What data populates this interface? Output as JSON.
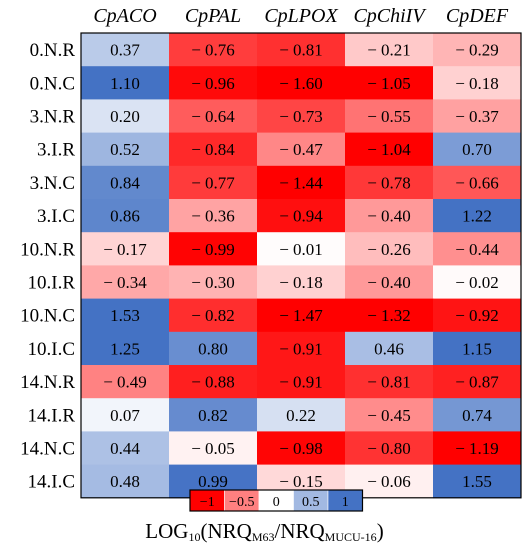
{
  "chart_data": {
    "type": "heatmap",
    "columns": [
      "CpACO",
      "CpPAL",
      "CpLPOX",
      "CpChiIV",
      "CpDEF"
    ],
    "rows": [
      "0.N.R",
      "0.N.C",
      "3.N.R",
      "3.I.R",
      "3.N.C",
      "3.I.C",
      "10.N.R",
      "10.I.R",
      "10.N.C",
      "10.I.C",
      "14.N.R",
      "14.I.R",
      "14.N.C",
      "14.I.C"
    ],
    "values": [
      [
        0.37,
        -0.76,
        -0.81,
        -0.21,
        -0.29
      ],
      [
        1.1,
        -0.96,
        -1.6,
        -1.05,
        -0.18
      ],
      [
        0.2,
        -0.64,
        -0.73,
        -0.55,
        -0.37
      ],
      [
        0.52,
        -0.84,
        -0.47,
        -1.04,
        0.7
      ],
      [
        0.84,
        -0.77,
        -1.44,
        -0.78,
        -0.66
      ],
      [
        0.86,
        -0.36,
        -0.94,
        -0.4,
        1.22
      ],
      [
        -0.17,
        -0.99,
        -0.01,
        -0.26,
        -0.44
      ],
      [
        -0.34,
        -0.3,
        -0.18,
        -0.4,
        -0.02
      ],
      [
        1.53,
        -0.82,
        -1.47,
        -1.32,
        -0.92
      ],
      [
        1.25,
        0.8,
        -0.91,
        0.46,
        1.15
      ],
      [
        -0.49,
        -0.88,
        -0.91,
        -0.81,
        -0.87
      ],
      [
        0.07,
        0.82,
        0.22,
        -0.45,
        0.74
      ],
      [
        0.44,
        -0.05,
        -0.98,
        -0.8,
        -1.19
      ],
      [
        0.48,
        0.99,
        -0.15,
        -0.06,
        1.55
      ]
    ],
    "color_scale": {
      "min": -1,
      "max": 1,
      "negative_color": "#ff0000",
      "neutral_color": "#ffffff",
      "positive_color": "#4472c4",
      "tick_labels": [
        "−1",
        "−0.5",
        "0",
        "0.5",
        "1"
      ]
    },
    "colorbar_title": {
      "main": "LOG",
      "sub1": "10",
      "part2": "(NRQ",
      "sub2": "M63",
      "part3": "/NRQ",
      "sub3": "MUCU-16",
      "part4": ")"
    }
  }
}
